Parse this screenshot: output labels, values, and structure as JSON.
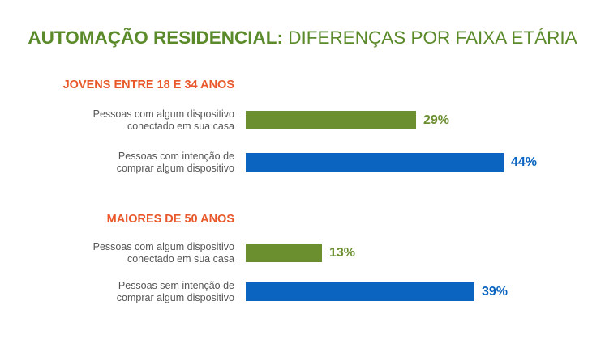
{
  "title": {
    "bold": "AUTOMAÇÃO RESIDENCIAL:",
    "rest": "DIFERENÇAS POR FAIXA ETÁRIA"
  },
  "colors": {
    "title": "#5a8a2a",
    "group_title": "#e8582b",
    "label": "#555555",
    "green": "#6b8e2f",
    "blue": "#0a64c0"
  },
  "chart_data": {
    "type": "bar",
    "orientation": "horizontal",
    "unit": "%",
    "xlim": [
      0,
      100
    ],
    "groups": [
      {
        "title": "JOVENS ENTRE 18 E 34 ANOS",
        "bars": [
          {
            "label": [
              "Pessoas com algum dispositivo",
              "conectado em sua casa"
            ],
            "value": 29,
            "value_label": "29%",
            "color": "green"
          },
          {
            "label": [
              "Pessoas com intenção de",
              "comprar algum dispositivo"
            ],
            "value": 44,
            "value_label": "44%",
            "color": "blue"
          }
        ]
      },
      {
        "title": "MAIORES DE 50 ANOS",
        "bars": [
          {
            "label": [
              "Pessoas com algum dispositivo",
              "conectado em sua casa"
            ],
            "value": 13,
            "value_label": "13%",
            "color": "green"
          },
          {
            "label": [
              "Pessoas sem intenção de",
              "comprar algum dispositivo"
            ],
            "value": 39,
            "value_label": "39%",
            "color": "blue"
          }
        ]
      }
    ]
  }
}
